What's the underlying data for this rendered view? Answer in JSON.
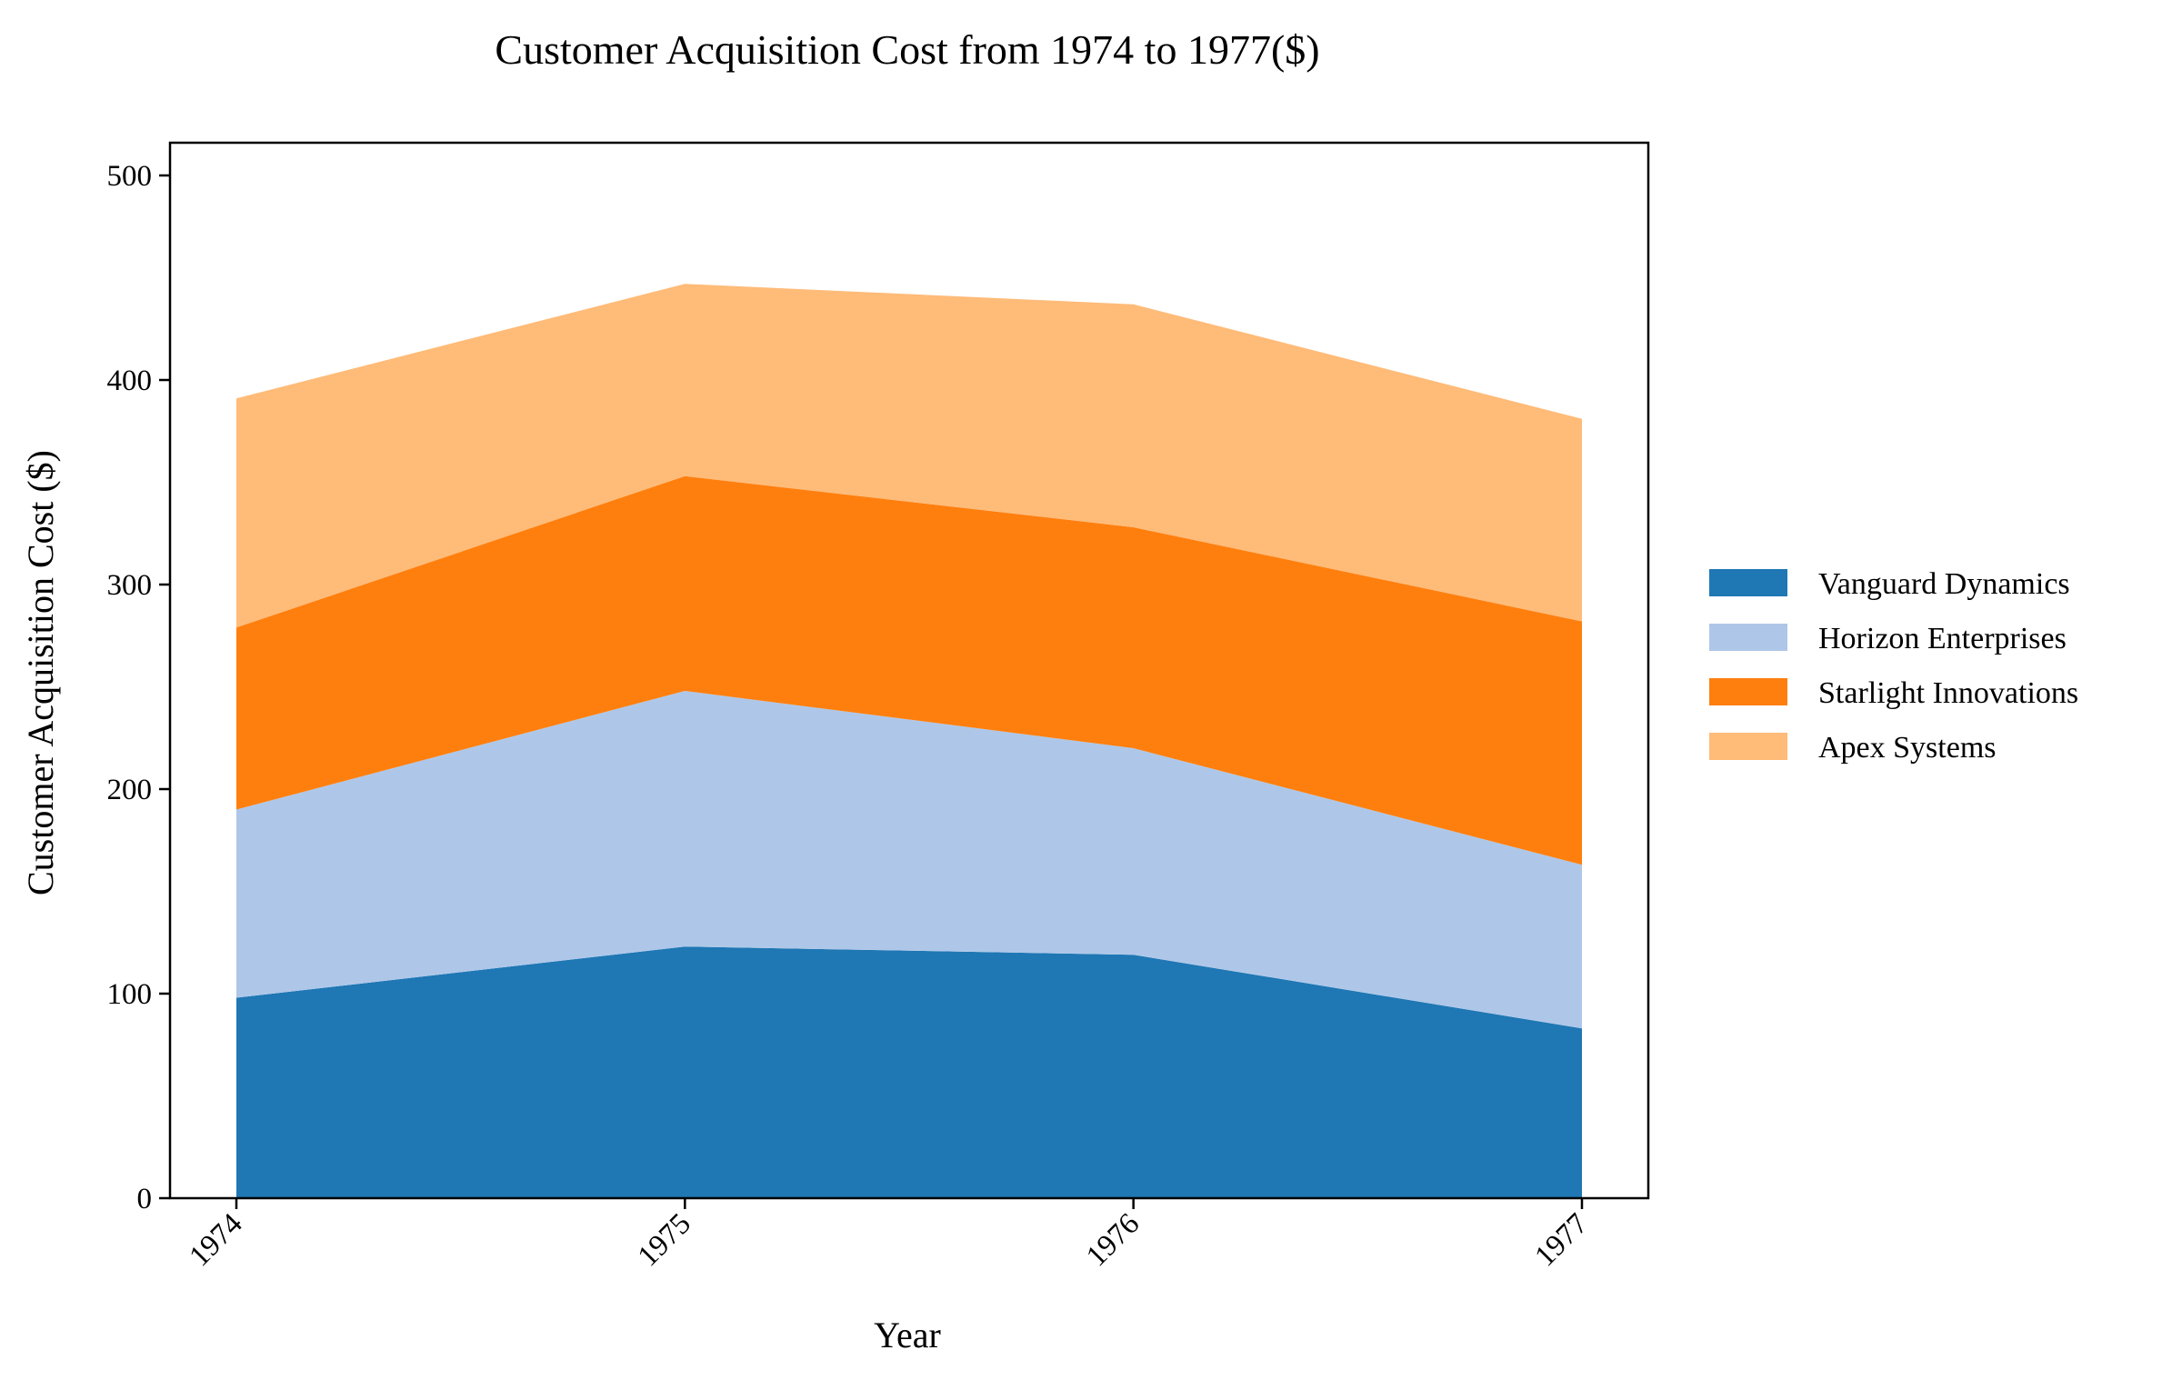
{
  "chart_data": {
    "type": "area",
    "stacked": true,
    "title": "Customer Acquisition Cost from 1974 to 1977($)",
    "xlabel": "Year",
    "ylabel": "Customer Acquisition Cost ($)",
    "x": [
      "1974",
      "1975",
      "1976",
      "1977"
    ],
    "ylim": [
      0,
      516
    ],
    "yticks": [
      0,
      100,
      200,
      300,
      400,
      500
    ],
    "grid": false,
    "legend_position": "right",
    "series": [
      {
        "name": "Vanguard Dynamics",
        "values": [
          98,
          123,
          119,
          83
        ],
        "color": "#1f77b4"
      },
      {
        "name": "Horizon Enterprises",
        "values": [
          92,
          125,
          101,
          80
        ],
        "color": "#aec7e8"
      },
      {
        "name": "Starlight Innovations",
        "values": [
          89,
          105,
          108,
          119
        ],
        "color": "#ff7f0e"
      },
      {
        "name": "Apex Systems",
        "values": [
          112,
          94,
          109,
          99
        ],
        "color": "#ffbb78"
      }
    ]
  }
}
